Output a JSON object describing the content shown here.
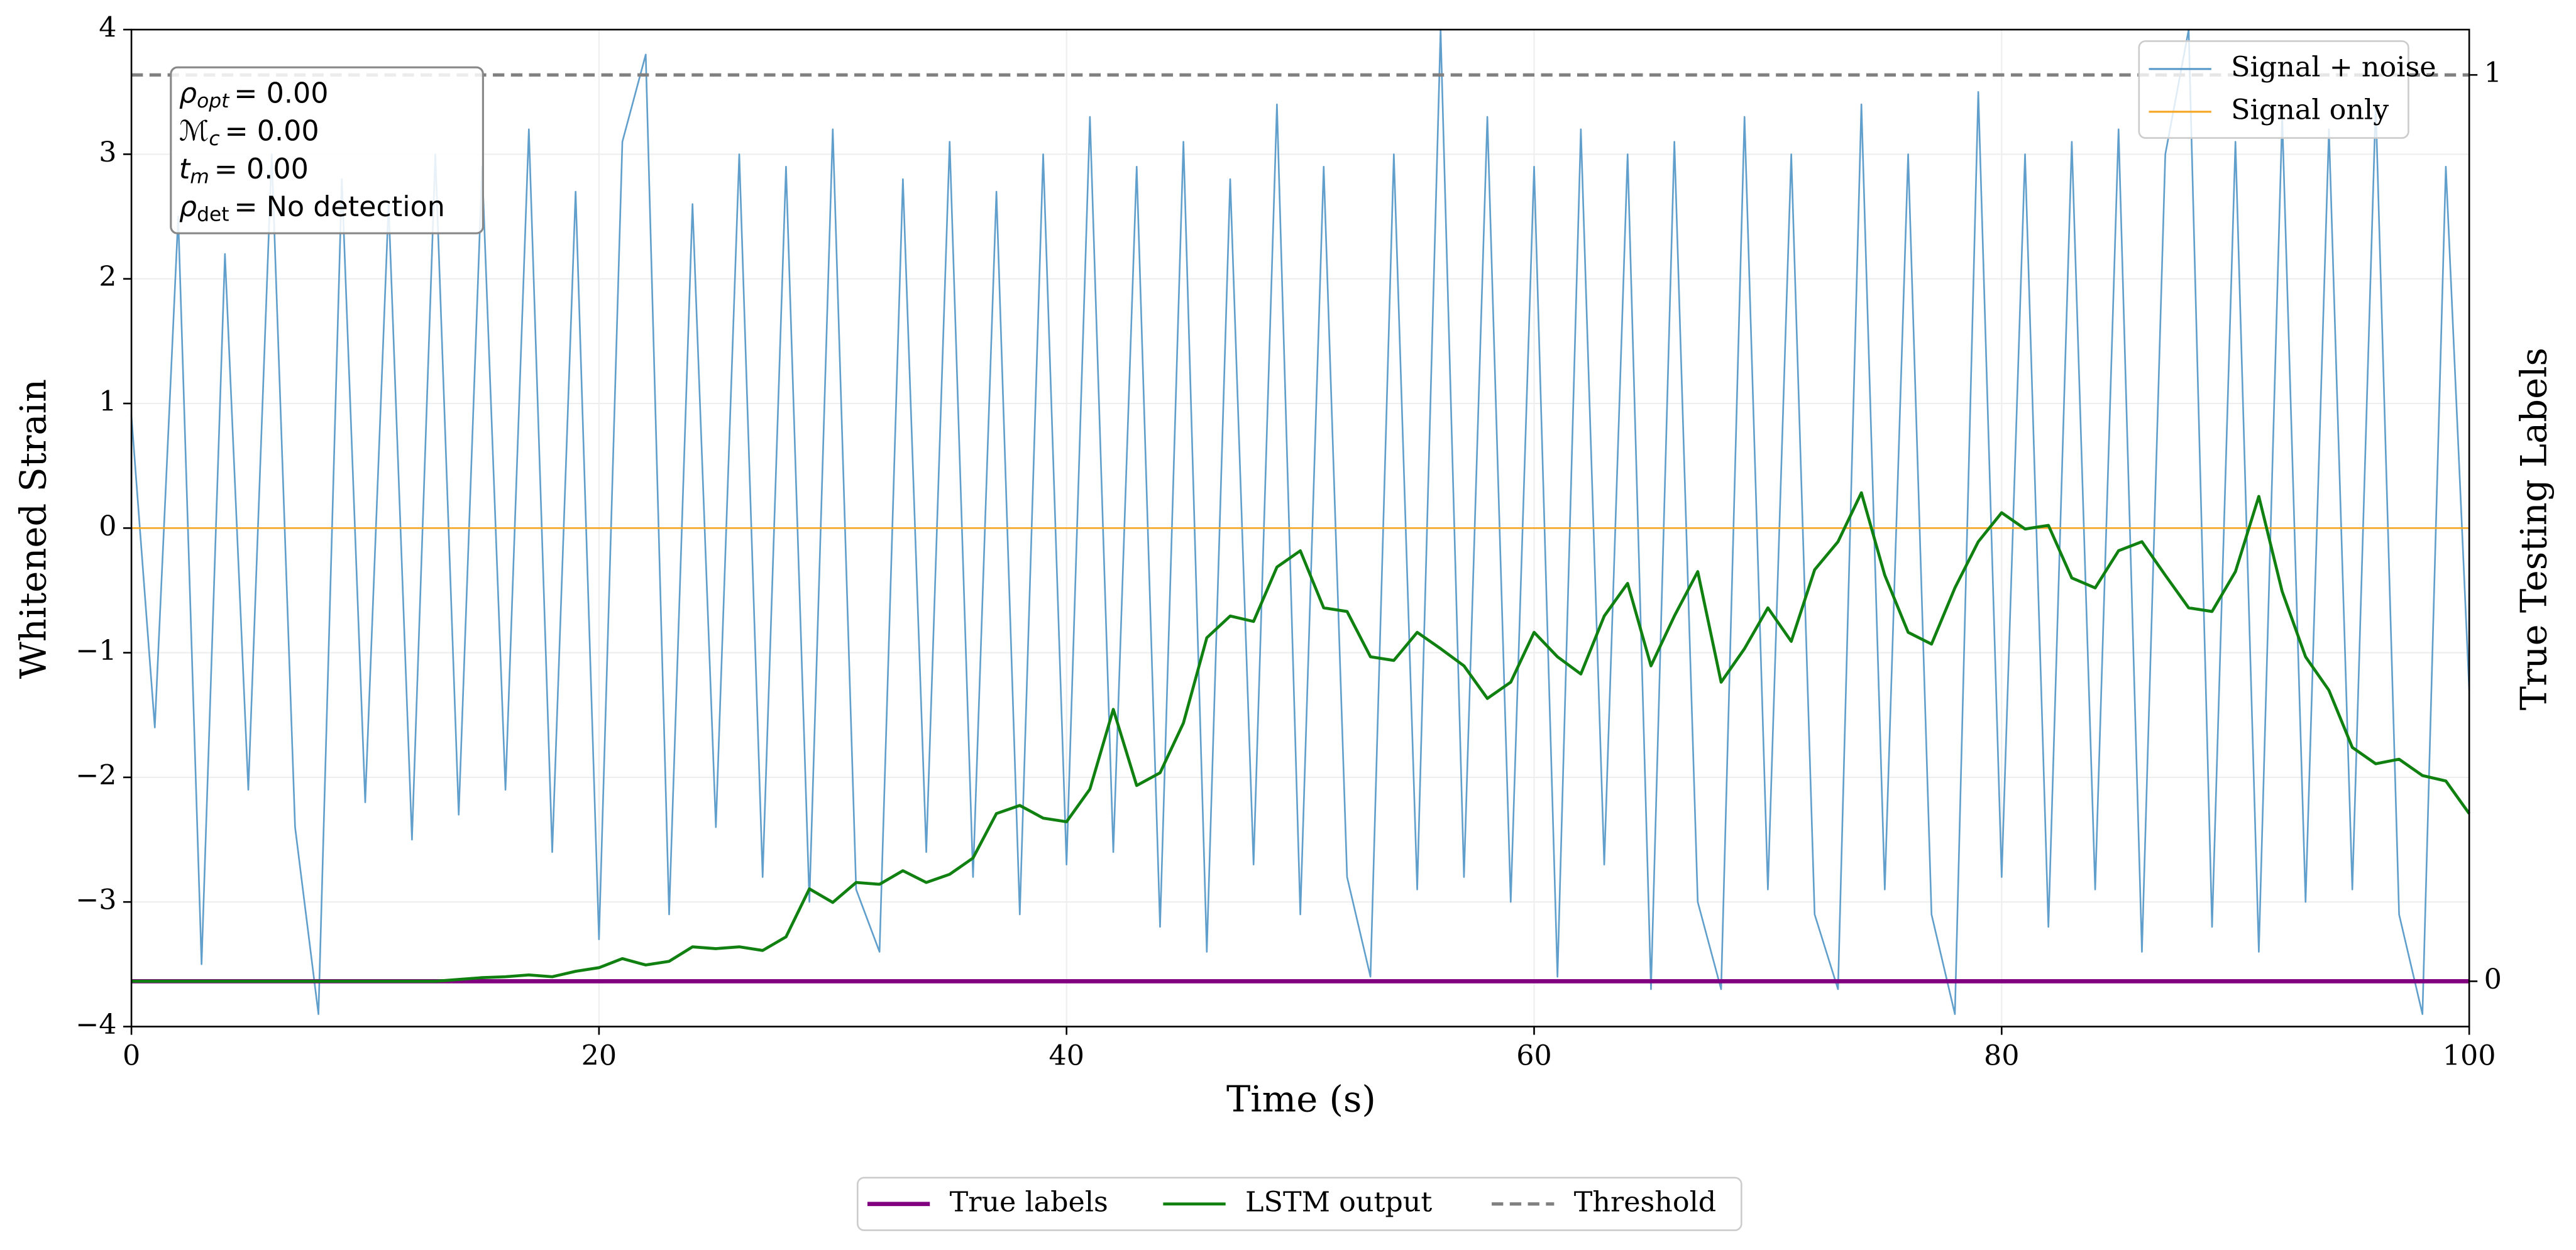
{
  "chart_data": {
    "type": "line",
    "xlabel": "Time (s)",
    "ylabel": "Whitened Strain",
    "y2label": "True Testing Labels",
    "xlim": [
      0,
      100
    ],
    "xticks": [
      0,
      20,
      40,
      60,
      80,
      100
    ],
    "ylim": [
      -4,
      4
    ],
    "yticks": [
      {
        "value": -4,
        "label": "−4"
      },
      {
        "value": -3,
        "label": "−3"
      },
      {
        "value": -2,
        "label": "−2"
      },
      {
        "value": -1,
        "label": "−1"
      },
      0,
      1,
      2,
      3,
      4
    ],
    "y2lim": [
      -0.05,
      1.05
    ],
    "y2ticks": [
      0,
      1
    ],
    "grid": true,
    "annotation": [
      {
        "symbol": "ρ",
        "sub": "opt",
        "text": "= 0.00"
      },
      {
        "symbol": "ℳ",
        "sub": "c",
        "text": "= 0.00"
      },
      {
        "symbol": "t",
        "sub": "m",
        "text": "= 0.00"
      },
      {
        "symbol": "ρ",
        "sub": "det",
        "text": "= No detection"
      }
    ],
    "x": [
      0,
      1,
      2,
      3,
      4,
      5,
      6,
      7,
      8,
      9,
      10,
      11,
      12,
      13,
      14,
      15,
      16,
      17,
      18,
      19,
      20,
      21,
      22,
      23,
      24,
      25,
      26,
      27,
      28,
      29,
      30,
      31,
      32,
      33,
      34,
      35,
      36,
      37,
      38,
      39,
      40,
      41,
      42,
      43,
      44,
      45,
      46,
      47,
      48,
      49,
      50,
      51,
      52,
      53,
      54,
      55,
      56,
      57,
      58,
      59,
      60,
      61,
      62,
      63,
      64,
      65,
      66,
      67,
      68,
      69,
      70,
      71,
      72,
      73,
      74,
      75,
      76,
      77,
      78,
      79,
      80,
      81,
      82,
      83,
      84,
      85,
      86,
      87,
      88,
      89,
      90,
      91,
      92,
      93,
      94,
      95,
      96,
      97,
      98,
      99,
      100
    ],
    "series": [
      {
        "name": "Signal + noise",
        "color": "#5799c8",
        "width": 1,
        "legend": "upper right",
        "values": [
          0.9,
          -1.6,
          2.5,
          -3.5,
          2.2,
          -2.1,
          3.0,
          -2.4,
          -3.9,
          2.8,
          -2.2,
          2.6,
          -2.5,
          3.0,
          -2.3,
          2.9,
          -2.1,
          3.2,
          -2.6,
          2.7,
          -3.3,
          3.1,
          3.8,
          -3.1,
          2.6,
          -2.4,
          3.0,
          -2.8,
          2.9,
          -3.0,
          3.2,
          -2.9,
          -3.4,
          2.8,
          -2.6,
          3.1,
          -2.8,
          2.7,
          -3.1,
          3.0,
          -2.7,
          3.3,
          -2.6,
          2.9,
          -3.2,
          3.1,
          -3.4,
          2.8,
          -2.7,
          3.4,
          -3.1,
          2.9,
          -2.8,
          -3.6,
          3.0,
          -2.9,
          4.0,
          -2.8,
          3.3,
          -3.0,
          2.9,
          -3.6,
          3.2,
          -2.7,
          3.0,
          -3.7,
          3.1,
          -3.0,
          -3.7,
          3.3,
          -2.9,
          3.0,
          -3.1,
          -3.7,
          3.4,
          -2.9,
          3.0,
          -3.1,
          -3.9,
          3.5,
          -2.8,
          3.0,
          -3.2,
          3.1,
          -2.9,
          3.2,
          -3.4,
          3.0,
          4.0,
          -3.2,
          3.1,
          -3.4,
          3.3,
          -3.0,
          3.2,
          -2.9,
          3.4,
          -3.1,
          -3.9,
          2.9,
          -1.3
        ]
      },
      {
        "name": "Signal only",
        "color": "#f5a623",
        "width": 1,
        "legend": "upper right",
        "x": [
          0,
          100
        ],
        "values": [
          0,
          0
        ]
      },
      {
        "name": "True labels",
        "color": "#800080",
        "width": 2.6,
        "axis": "y2",
        "legend": "lower center",
        "x": [
          0,
          100
        ],
        "values": [
          0,
          0
        ]
      },
      {
        "name": "LSTM output",
        "color": "#108010",
        "width": 1.8,
        "axis": "y2",
        "legend": "lower center",
        "values": [
          0,
          0,
          0,
          0,
          0,
          0,
          0,
          0,
          0,
          0,
          0,
          0,
          0,
          0,
          0.002,
          0.004,
          0.005,
          0.007,
          0.005,
          0.011,
          0.015,
          0.025,
          0.018,
          0.022,
          0.038,
          0.036,
          0.038,
          0.034,
          0.049,
          0.102,
          0.087,
          0.109,
          0.107,
          0.122,
          0.109,
          0.118,
          0.136,
          0.185,
          0.194,
          0.18,
          0.176,
          0.212,
          0.3,
          0.216,
          0.23,
          0.285,
          0.379,
          0.403,
          0.397,
          0.457,
          0.475,
          0.412,
          0.408,
          0.358,
          0.354,
          0.385,
          0.367,
          0.348,
          0.312,
          0.33,
          0.385,
          0.358,
          0.339,
          0.403,
          0.439,
          0.348,
          0.403,
          0.452,
          0.33,
          0.367,
          0.412,
          0.375,
          0.454,
          0.485,
          0.539,
          0.448,
          0.385,
          0.372,
          0.434,
          0.485,
          0.517,
          0.499,
          0.503,
          0.445,
          0.434,
          0.475,
          0.485,
          0.448,
          0.412,
          0.408,
          0.452,
          0.535,
          0.43,
          0.358,
          0.321,
          0.258,
          0.24,
          0.245,
          0.227,
          0.221,
          0.185
        ]
      },
      {
        "name": "Threshold",
        "color": "#808080",
        "width": 2,
        "dashed": true,
        "axis": "y2",
        "legend": "lower center",
        "x": [
          0,
          100
        ],
        "values": [
          1,
          1
        ]
      }
    ]
  }
}
